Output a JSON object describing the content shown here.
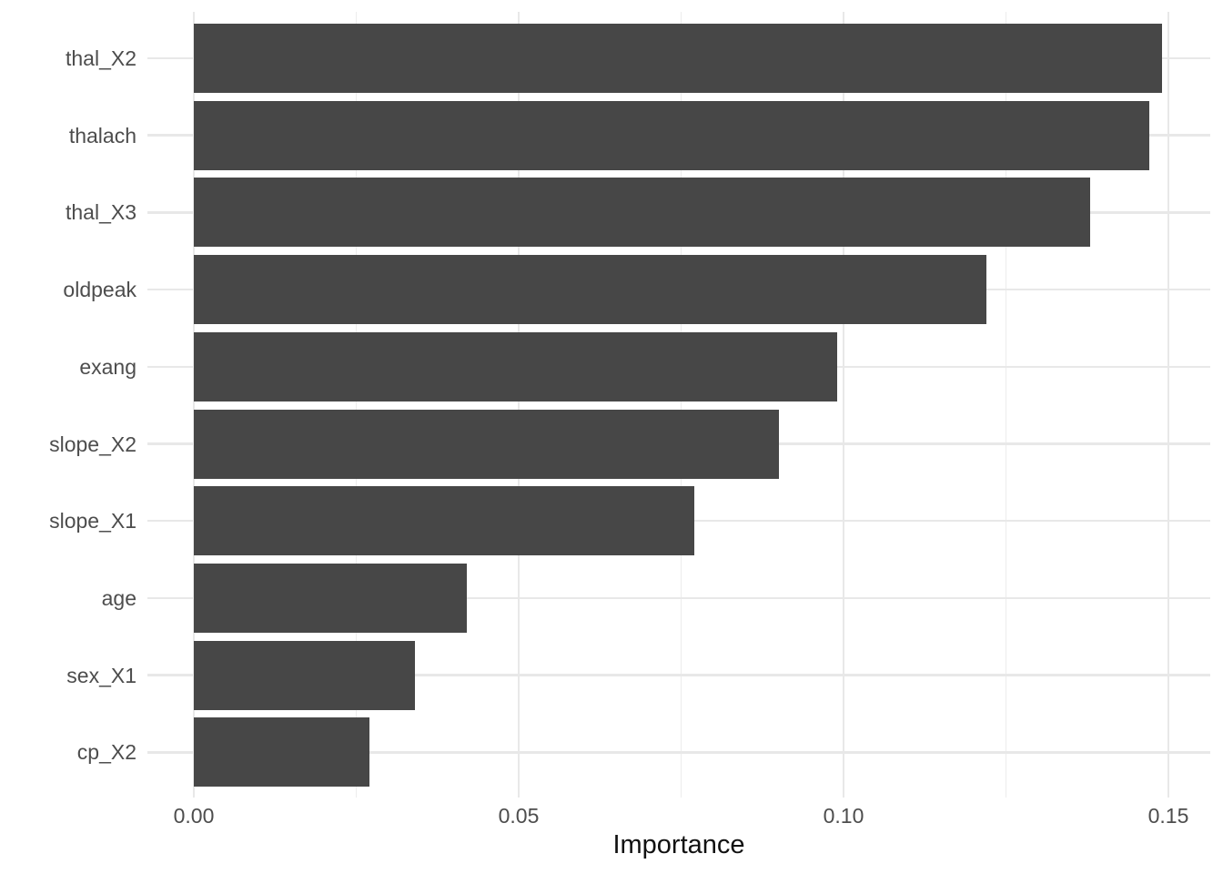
{
  "chart_data": {
    "type": "bar",
    "orientation": "horizontal",
    "title": "",
    "xlabel": "Importance",
    "ylabel": "",
    "categories": [
      "thal_X2",
      "thalach",
      "thal_X3",
      "oldpeak",
      "exang",
      "slope_X2",
      "slope_X1",
      "age",
      "sex_X1",
      "cp_X2"
    ],
    "values": [
      0.149,
      0.147,
      0.138,
      0.122,
      0.099,
      0.09,
      0.077,
      0.042,
      0.034,
      0.027
    ],
    "x_ticks": [
      {
        "value": 0.0,
        "label": "0.00"
      },
      {
        "value": 0.05,
        "label": "0.05"
      },
      {
        "value": 0.1,
        "label": "0.10"
      },
      {
        "value": 0.15,
        "label": "0.15"
      }
    ],
    "x_minor_ticks": [
      0.025,
      0.075,
      0.125
    ],
    "xlim": [
      0,
      0.1565
    ],
    "grid": true,
    "legend": "none",
    "colors": {
      "bar_fill": "#474747",
      "background": "#ffffff",
      "gridline_major": "#e8e8e8",
      "gridline_minor": "#ededed",
      "axis_text": "#4d4d4d",
      "axis_title": "#111111"
    }
  }
}
